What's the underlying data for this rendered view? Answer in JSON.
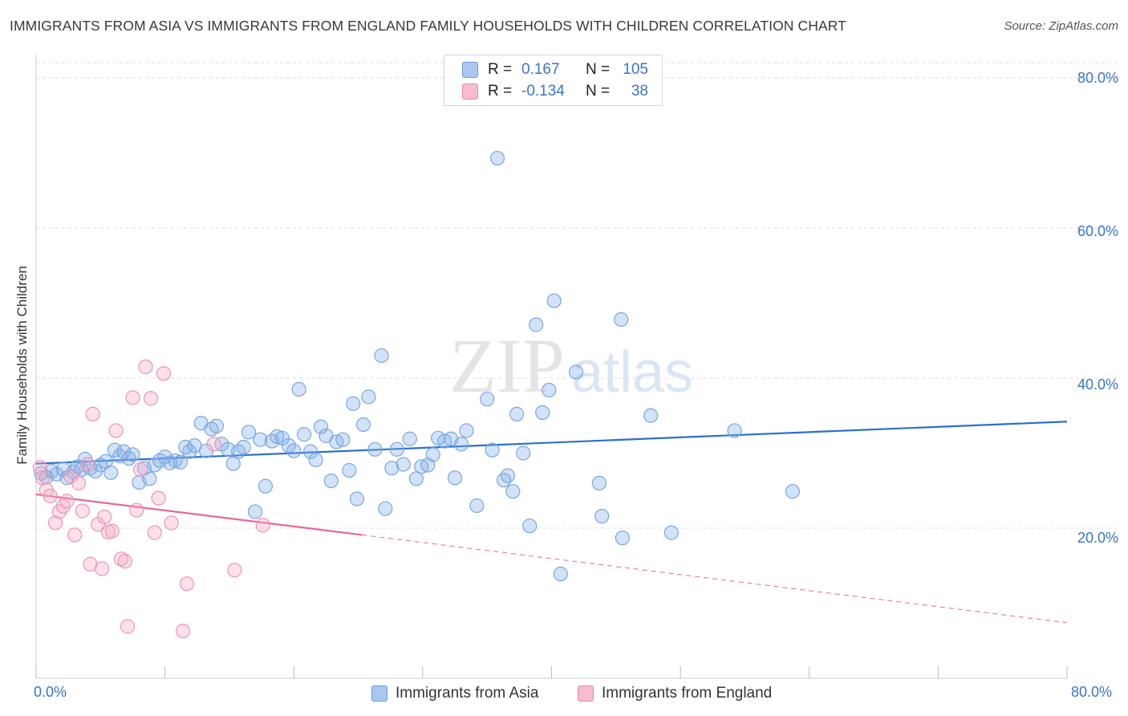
{
  "title": "IMMIGRANTS FROM ASIA VS IMMIGRANTS FROM ENGLAND FAMILY HOUSEHOLDS WITH CHILDREN CORRELATION CHART",
  "source": "Source: ZipAtlas.com",
  "watermark": {
    "zip": "ZIP",
    "atlas": "atlas"
  },
  "legend": {
    "rows": [
      {
        "r_label": "R =",
        "r_value": "0.167",
        "n_label": "N =",
        "n_value": "105",
        "color": "#a9c8f0",
        "border": "#6a9ad8"
      },
      {
        "r_label": "R =",
        "r_value": "-0.134",
        "n_label": "N =",
        "n_value": "38",
        "color": "#f7bcd0",
        "border": "#e889a8"
      }
    ]
  },
  "colors": {
    "asia_fill": "rgba(130,175,232,0.35)",
    "asia_stroke": "#7aa6e0",
    "asia_line": "#2a6fd0",
    "england_fill": "rgba(245,170,195,0.35)",
    "england_stroke": "#eb95b2",
    "england_line": "#e8679a",
    "axis_text": "#3a74c9",
    "grid": "#dddddd"
  },
  "chart_data": {
    "type": "scatter",
    "title": "IMMIGRANTS FROM ASIA VS IMMIGRANTS FROM ENGLAND FAMILY HOUSEHOLDS WITH CHILDREN CORRELATION CHART",
    "xlabel": "",
    "ylabel": "Family Households with Children",
    "xlim": [
      0,
      80
    ],
    "ylim": [
      0,
      80
    ],
    "x_tick_labels": [
      "0.0%",
      "80.0%"
    ],
    "y_tick_labels": [
      "20.0%",
      "40.0%",
      "60.0%",
      "80.0%"
    ],
    "y_ticks": [
      20,
      40,
      60,
      80
    ],
    "grid": true,
    "series": [
      {
        "name": "Immigrants from Asia",
        "points": [
          [
            0.4,
            27.3
          ],
          [
            0.8,
            26.8
          ],
          [
            1.2,
            27.6
          ],
          [
            1.6,
            27.2
          ],
          [
            2.1,
            27.9
          ],
          [
            2.4,
            26.7
          ],
          [
            2.9,
            27.5
          ],
          [
            3.2,
            28.2
          ],
          [
            3.5,
            27.8
          ],
          [
            3.8,
            29.2
          ],
          [
            4.2,
            28.0
          ],
          [
            4.6,
            27.6
          ],
          [
            5.0,
            28.4
          ],
          [
            5.4,
            28.9
          ],
          [
            5.8,
            27.4
          ],
          [
            6.1,
            30.4
          ],
          [
            6.5,
            29.6
          ],
          [
            6.8,
            30.2
          ],
          [
            7.2,
            29.3
          ],
          [
            7.5,
            29.8
          ],
          [
            8.0,
            26.1
          ],
          [
            8.4,
            28.0
          ],
          [
            8.8,
            26.6
          ],
          [
            9.2,
            28.4
          ],
          [
            9.6,
            29.0
          ],
          [
            10.0,
            29.5
          ],
          [
            10.4,
            28.7
          ],
          [
            10.8,
            29.0
          ],
          [
            11.2,
            28.8
          ],
          [
            11.6,
            30.8
          ],
          [
            11.9,
            30.2
          ],
          [
            12.3,
            31.0
          ],
          [
            12.8,
            34.0
          ],
          [
            13.2,
            30.3
          ],
          [
            13.6,
            33.2
          ],
          [
            14.0,
            33.6
          ],
          [
            14.4,
            31.2
          ],
          [
            14.9,
            30.5
          ],
          [
            15.3,
            28.6
          ],
          [
            15.7,
            30.2
          ],
          [
            16.1,
            30.8
          ],
          [
            16.5,
            32.8
          ],
          [
            17.0,
            22.2
          ],
          [
            17.4,
            31.8
          ],
          [
            17.8,
            25.6
          ],
          [
            18.3,
            31.6
          ],
          [
            18.7,
            32.2
          ],
          [
            19.1,
            32.0
          ],
          [
            19.6,
            31.0
          ],
          [
            20.0,
            30.3
          ],
          [
            20.4,
            38.5
          ],
          [
            20.8,
            32.5
          ],
          [
            21.3,
            30.2
          ],
          [
            21.7,
            29.1
          ],
          [
            22.1,
            33.5
          ],
          [
            22.5,
            32.3
          ],
          [
            22.9,
            26.3
          ],
          [
            23.3,
            31.5
          ],
          [
            23.8,
            31.8
          ],
          [
            24.3,
            27.7
          ],
          [
            24.6,
            36.6
          ],
          [
            24.9,
            23.9
          ],
          [
            25.4,
            33.8
          ],
          [
            25.8,
            37.5
          ],
          [
            26.3,
            30.5
          ],
          [
            26.8,
            43.0
          ],
          [
            27.1,
            22.6
          ],
          [
            27.6,
            28.0
          ],
          [
            28.0,
            30.5
          ],
          [
            28.5,
            28.5
          ],
          [
            29.0,
            31.9
          ],
          [
            29.5,
            26.6
          ],
          [
            29.9,
            28.2
          ],
          [
            30.4,
            28.4
          ],
          [
            30.8,
            29.8
          ],
          [
            31.2,
            32.0
          ],
          [
            31.7,
            31.6
          ],
          [
            32.2,
            31.9
          ],
          [
            32.5,
            26.7
          ],
          [
            33.0,
            31.2
          ],
          [
            33.4,
            33.0
          ],
          [
            34.2,
            23.0
          ],
          [
            35.0,
            37.2
          ],
          [
            35.4,
            30.4
          ],
          [
            35.8,
            69.3
          ],
          [
            36.3,
            26.4
          ],
          [
            36.6,
            27.0
          ],
          [
            37.0,
            24.9
          ],
          [
            37.3,
            35.2
          ],
          [
            37.8,
            30.0
          ],
          [
            38.3,
            20.3
          ],
          [
            38.8,
            47.1
          ],
          [
            39.3,
            35.4
          ],
          [
            39.8,
            38.4
          ],
          [
            40.2,
            50.3
          ],
          [
            40.7,
            13.9
          ],
          [
            41.9,
            40.8
          ],
          [
            43.7,
            26.0
          ],
          [
            43.9,
            21.6
          ],
          [
            45.4,
            47.8
          ],
          [
            45.5,
            18.7
          ],
          [
            47.7,
            35.0
          ],
          [
            49.3,
            19.4
          ],
          [
            58.7,
            24.9
          ],
          [
            54.2,
            33.0
          ]
        ]
      },
      {
        "name": "Immigrants from England",
        "points": [
          [
            0.3,
            28.1
          ],
          [
            0.5,
            26.7
          ],
          [
            0.8,
            25.1
          ],
          [
            1.1,
            24.3
          ],
          [
            1.5,
            20.7
          ],
          [
            1.8,
            22.2
          ],
          [
            2.1,
            22.9
          ],
          [
            2.4,
            23.6
          ],
          [
            2.7,
            26.9
          ],
          [
            3.0,
            19.1
          ],
          [
            3.3,
            26.0
          ],
          [
            3.6,
            22.3
          ],
          [
            4.0,
            28.5
          ],
          [
            4.2,
            15.2
          ],
          [
            4.4,
            35.2
          ],
          [
            4.8,
            20.5
          ],
          [
            5.1,
            14.6
          ],
          [
            5.3,
            21.5
          ],
          [
            5.6,
            19.5
          ],
          [
            5.9,
            19.6
          ],
          [
            6.2,
            33.0
          ],
          [
            6.6,
            15.9
          ],
          [
            6.9,
            15.6
          ],
          [
            7.1,
            6.9
          ],
          [
            7.5,
            37.4
          ],
          [
            7.8,
            22.4
          ],
          [
            8.1,
            27.8
          ],
          [
            8.5,
            41.5
          ],
          [
            8.9,
            37.3
          ],
          [
            9.2,
            19.4
          ],
          [
            9.5,
            24.0
          ],
          [
            9.9,
            40.6
          ],
          [
            10.5,
            20.7
          ],
          [
            11.4,
            6.3
          ],
          [
            11.7,
            12.6
          ],
          [
            13.8,
            31.2
          ],
          [
            15.4,
            14.4
          ],
          [
            17.6,
            20.4
          ]
        ]
      }
    ],
    "trendlines": [
      {
        "series": "Immigrants from Asia",
        "x": [
          0,
          80
        ],
        "y": [
          28.6,
          34.2
        ],
        "style": "solid"
      },
      {
        "series": "Immigrants from England",
        "x": [
          0,
          25.3
        ],
        "y": [
          24.5,
          19.1
        ],
        "style": "solid"
      },
      {
        "series": "Immigrants from England",
        "x": [
          25.3,
          80
        ],
        "y": [
          19.1,
          7.4
        ],
        "style": "dashed"
      }
    ]
  }
}
